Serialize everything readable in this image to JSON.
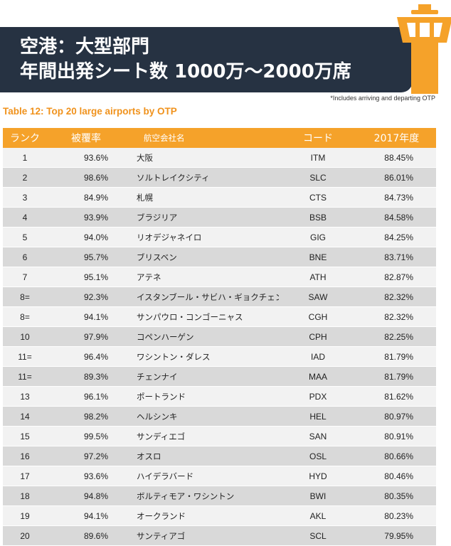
{
  "banner": {
    "line1": "空港：大型部門",
    "line2": "年間出発シート数 1000万〜2000万席"
  },
  "note": "*Includes arriving and departing OTP",
  "table_title": "Table 12: Top 20 large airports by OTP",
  "columns": [
    "ランク",
    "被覆率",
    "航空会社名",
    "コード",
    "2017年度"
  ],
  "rows": [
    {
      "rank": "1",
      "coverage": "93.6%",
      "name": "大阪",
      "code": "ITM",
      "otp": "88.45%"
    },
    {
      "rank": "2",
      "coverage": "98.6%",
      "name": "ソルトレイクシティ",
      "code": "SLC",
      "otp": "86.01%"
    },
    {
      "rank": "3",
      "coverage": "84.9%",
      "name": "札幌",
      "code": "CTS",
      "otp": "84.73%"
    },
    {
      "rank": "4",
      "coverage": "93.9%",
      "name": "ブラジリア",
      "code": "BSB",
      "otp": "84.58%"
    },
    {
      "rank": "5",
      "coverage": "94.0%",
      "name": "リオデジャネイロ",
      "code": "GIG",
      "otp": "84.25%"
    },
    {
      "rank": "6",
      "coverage": "95.7%",
      "name": "ブリスベン",
      "code": "BNE",
      "otp": "83.71%"
    },
    {
      "rank": "7",
      "coverage": "95.1%",
      "name": "アテネ",
      "code": "ATH",
      "otp": "82.87%"
    },
    {
      "rank": "8=",
      "coverage": "92.3%",
      "name": "イスタンブール・サビハ・ギョクチェン",
      "code": "SAW",
      "otp": "82.32%"
    },
    {
      "rank": "8=",
      "coverage": "94.1%",
      "name": "サンパウロ・コンゴーニャス",
      "code": "CGH",
      "otp": "82.32%"
    },
    {
      "rank": "10",
      "coverage": "97.9%",
      "name": "コペンハーゲン",
      "code": "CPH",
      "otp": "82.25%"
    },
    {
      "rank": "11=",
      "coverage": "96.4%",
      "name": "ワシントン・ダレス",
      "code": "IAD",
      "otp": "81.79%"
    },
    {
      "rank": "11=",
      "coverage": "89.3%",
      "name": "チェンナイ",
      "code": "MAA",
      "otp": "81.79%"
    },
    {
      "rank": "13",
      "coverage": "96.1%",
      "name": "ポートランド",
      "code": "PDX",
      "otp": "81.62%"
    },
    {
      "rank": "14",
      "coverage": "98.2%",
      "name": "ヘルシンキ",
      "code": "HEL",
      "otp": "80.97%"
    },
    {
      "rank": "15",
      "coverage": "99.5%",
      "name": "サンディエゴ",
      "code": "SAN",
      "otp": "80.91%"
    },
    {
      "rank": "16",
      "coverage": "97.2%",
      "name": "オスロ",
      "code": "OSL",
      "otp": "80.66%"
    },
    {
      "rank": "17",
      "coverage": "93.6%",
      "name": "ハイデラバード",
      "code": "HYD",
      "otp": "80.46%"
    },
    {
      "rank": "18",
      "coverage": "94.8%",
      "name": "ボルティモア・ワシントン",
      "code": "BWI",
      "otp": "80.35%"
    },
    {
      "rank": "19",
      "coverage": "94.1%",
      "name": "オークランド",
      "code": "AKL",
      "otp": "80.23%"
    },
    {
      "rank": "20",
      "coverage": "89.6%",
      "name": "サンティアゴ",
      "code": "SCL",
      "otp": "79.95%"
    }
  ],
  "colors": {
    "banner": "#263242",
    "accent": "#f5a22a",
    "title": "#f0921c",
    "row_light": "#f2f2f2",
    "row_dark": "#d9d9d9"
  },
  "icons": [
    "control-tower-icon"
  ]
}
